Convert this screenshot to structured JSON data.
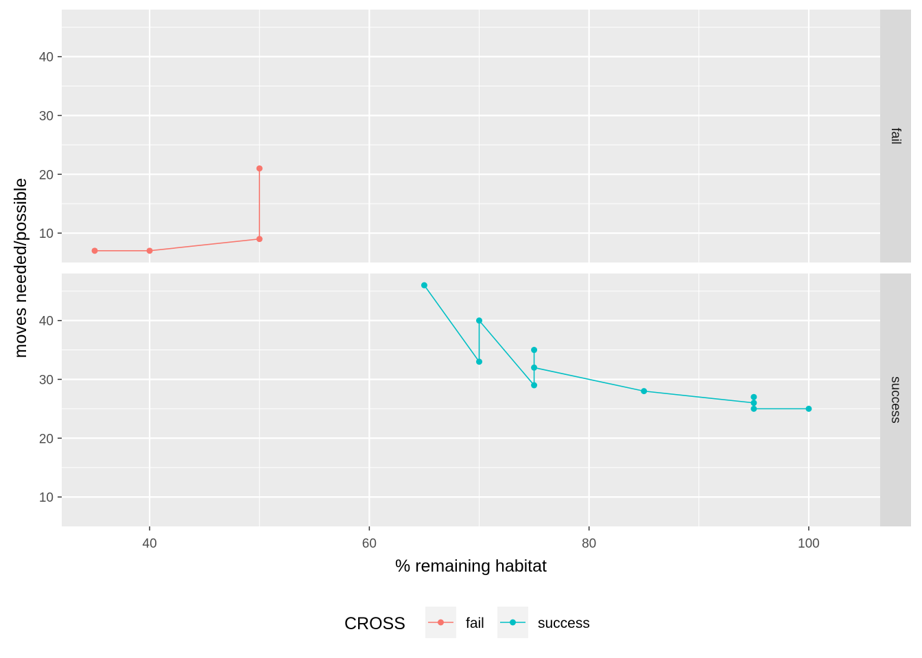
{
  "chart_data": {
    "type": "line",
    "xlabel": "% remaining habitat",
    "ylabel": "moves needed/possible",
    "xlim": [
      32,
      106.5
    ],
    "ylim": [
      5,
      48
    ],
    "x_ticks": [
      40,
      60,
      80,
      100
    ],
    "y_ticks": [
      10,
      20,
      30,
      40
    ],
    "grid": true,
    "facets": [
      "fail",
      "success"
    ],
    "legend": {
      "title": "CROSS",
      "position": "bottom",
      "entries": [
        "fail",
        "success"
      ]
    },
    "series": [
      {
        "name": "fail",
        "color": "#F8766D",
        "facet": "fail",
        "points": [
          [
            35,
            7
          ],
          [
            40,
            7
          ],
          [
            50,
            9
          ],
          [
            50,
            21
          ]
        ]
      },
      {
        "name": "success",
        "color": "#00BFC4",
        "facet": "success",
        "points": [
          [
            65,
            46
          ],
          [
            70,
            33
          ],
          [
            70,
            40
          ],
          [
            75,
            29
          ],
          [
            75,
            35
          ],
          [
            75,
            32
          ],
          [
            85,
            28
          ],
          [
            95,
            26
          ],
          [
            95,
            27
          ],
          [
            95,
            25
          ],
          [
            100,
            25
          ]
        ]
      }
    ]
  }
}
